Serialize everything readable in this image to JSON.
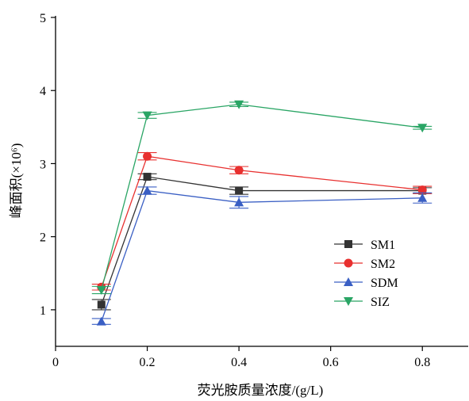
{
  "chart_data": {
    "type": "line",
    "title": "",
    "xlabel": "荧光胺质量浓度/(g/L)",
    "ylabel": "峰面积(×10⁶)",
    "xlim": [
      0,
      0.9
    ],
    "ylim": [
      0.5,
      5
    ],
    "x_ticks": [
      "0",
      "0.2",
      "0.4",
      "0.6",
      "0.8"
    ],
    "y_ticks": [
      "1",
      "2",
      "3",
      "4",
      "5"
    ],
    "x_tick_values": [
      0,
      0.2,
      0.4,
      0.6,
      0.8
    ],
    "y_tick_values": [
      1,
      2,
      3,
      4,
      5
    ],
    "x": [
      0.1,
      0.2,
      0.4,
      0.8
    ],
    "grid": false,
    "legend_position": "right-lower",
    "series": [
      {
        "name": "SM1",
        "color": "#333333",
        "marker": "square",
        "values": [
          1.07,
          2.82,
          2.63,
          2.63
        ],
        "errors": [
          0.07,
          0.04,
          0.05,
          0.04
        ]
      },
      {
        "name": "SM2",
        "color": "#e8302f",
        "marker": "circle",
        "values": [
          1.31,
          3.1,
          2.91,
          2.64
        ],
        "errors": [
          0.04,
          0.05,
          0.05,
          0.05
        ]
      },
      {
        "name": "SDM",
        "color": "#3a5fc4",
        "marker": "triangle-up",
        "values": [
          0.84,
          2.63,
          2.47,
          2.53
        ],
        "errors": [
          0.04,
          0.05,
          0.08,
          0.07
        ]
      },
      {
        "name": "SIZ",
        "color": "#2aa565",
        "marker": "triangle-down",
        "values": [
          1.27,
          3.66,
          3.81,
          3.49
        ],
        "errors": [
          0.05,
          0.04,
          0.03,
          0.02
        ]
      }
    ]
  }
}
